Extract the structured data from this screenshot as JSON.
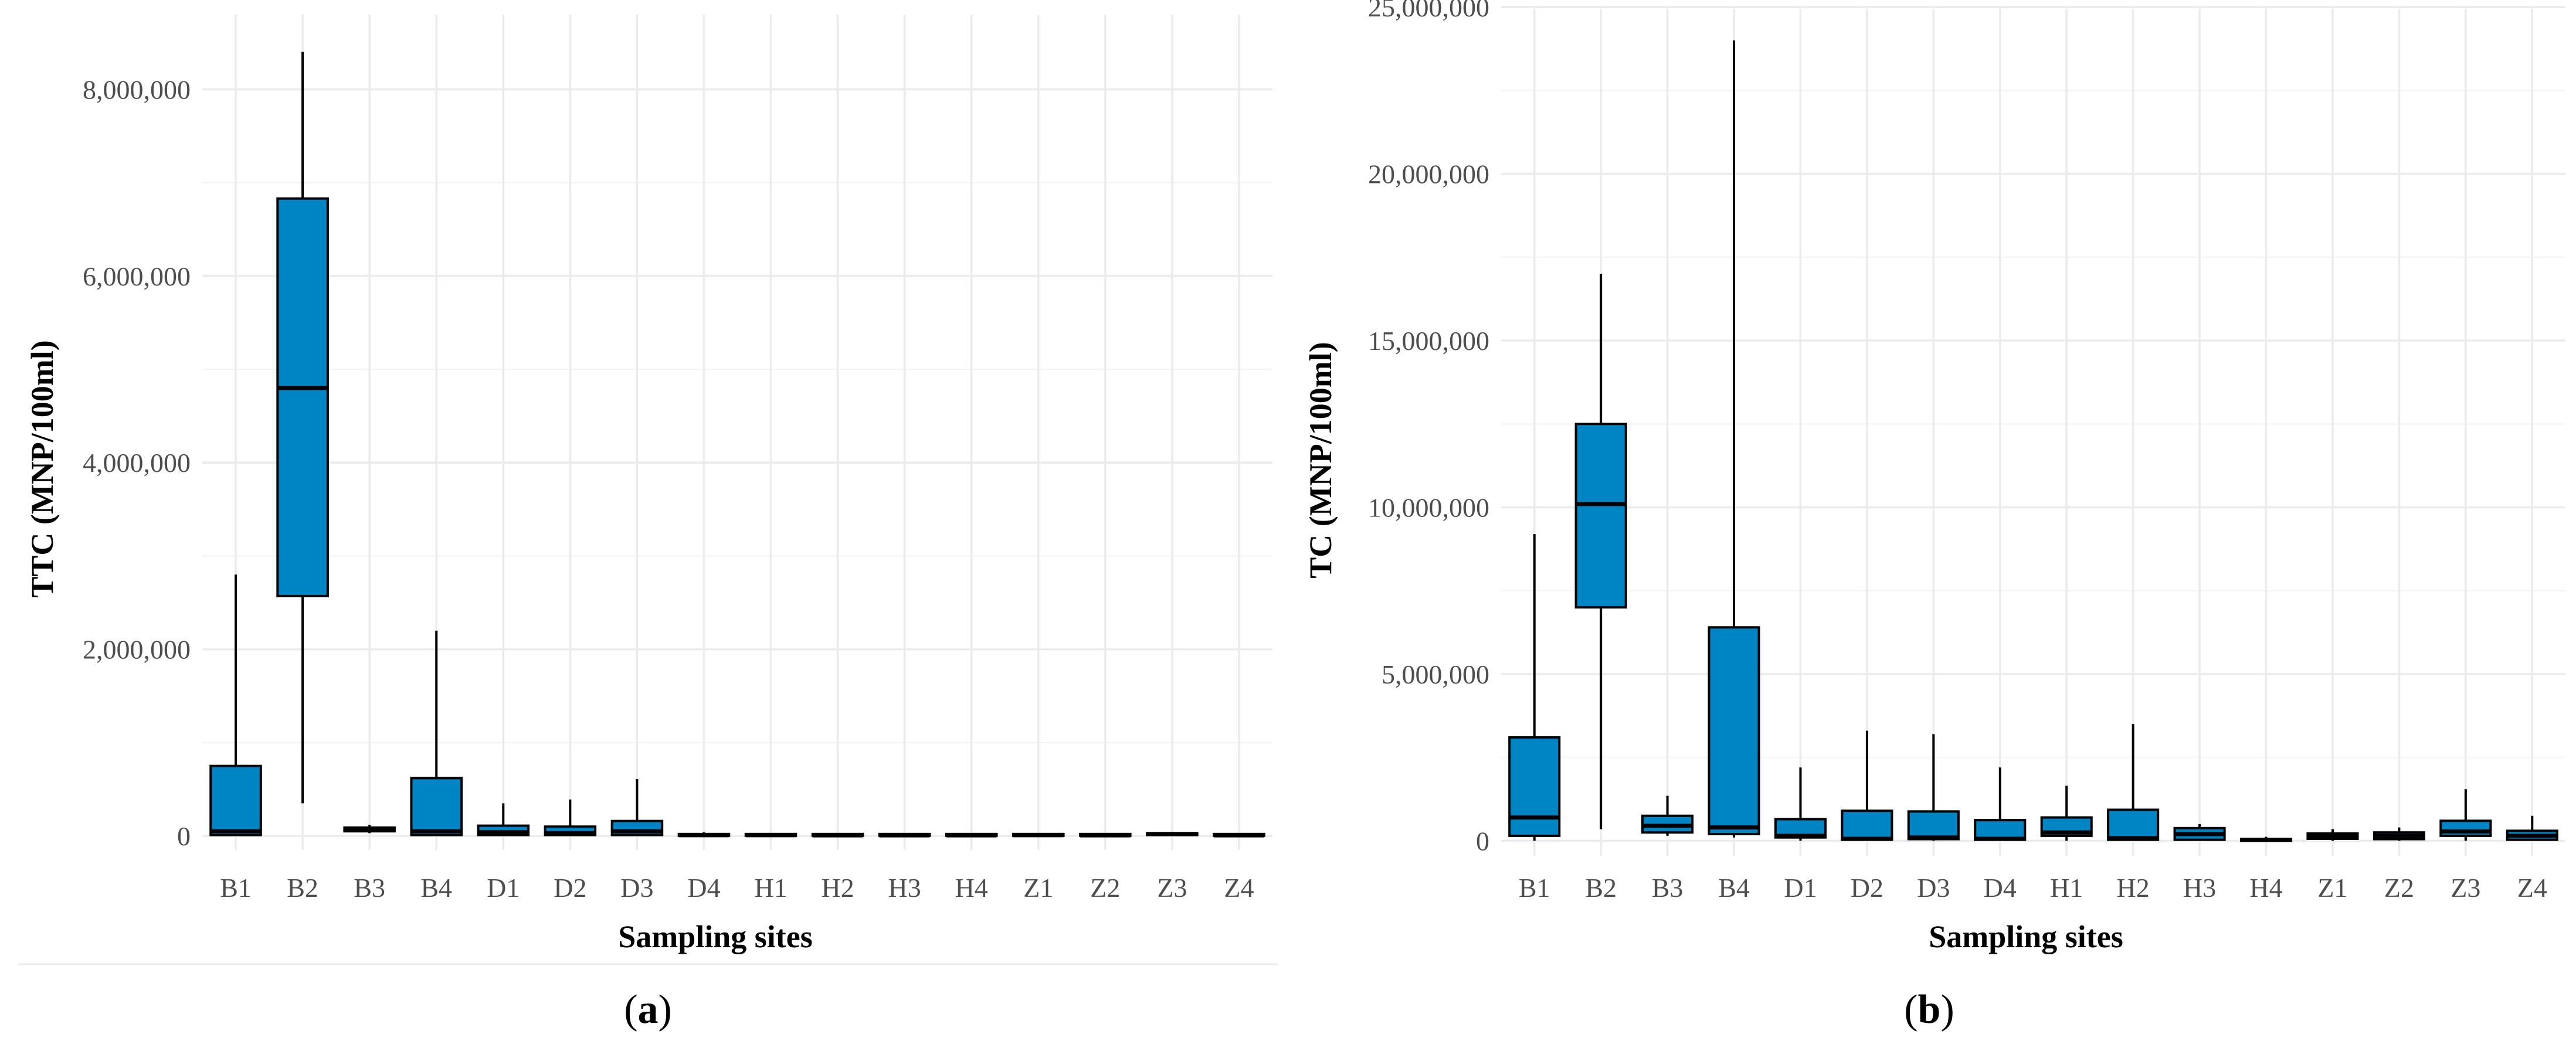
{
  "colors": {
    "box_fill": "#0085C4",
    "grid": "#EBEBEB",
    "tick_text": "#4D4D4D"
  },
  "chart_data": [
    {
      "type": "boxplot",
      "panel_label": {
        "open": "(",
        "letter": "a",
        "close": ")"
      },
      "xlabel": "Sampling sites",
      "ylabel": "TTC (MNP/100ml)",
      "ylim": [
        -150000,
        8800000
      ],
      "yticks": [
        0,
        2000000,
        4000000,
        6000000,
        8000000
      ],
      "ytick_labels": [
        "0",
        "2,000,000",
        "4,000,000",
        "6,000,000",
        "8,000,000"
      ],
      "grid": true,
      "categories": [
        "B1",
        "B2",
        "B3",
        "B4",
        "D1",
        "D2",
        "D3",
        "D4",
        "H1",
        "H2",
        "H3",
        "H4",
        "Z1",
        "Z2",
        "Z3",
        "Z4"
      ],
      "boxes": [
        {
          "min": 0,
          "q1": 10000,
          "median": 50000,
          "q3": 750000,
          "max": 2800000
        },
        {
          "min": 350000,
          "q1": 2570000,
          "median": 4800000,
          "q3": 6830000,
          "max": 8400000
        },
        {
          "min": 30000,
          "q1": 50000,
          "median": 70000,
          "q3": 90000,
          "max": 120000
        },
        {
          "min": 0,
          "q1": 10000,
          "median": 50000,
          "q3": 620000,
          "max": 2200000
        },
        {
          "min": 0,
          "q1": 10000,
          "median": 40000,
          "q3": 110000,
          "max": 350000
        },
        {
          "min": 0,
          "q1": 10000,
          "median": 30000,
          "q3": 100000,
          "max": 390000
        },
        {
          "min": 0,
          "q1": 10000,
          "median": 50000,
          "q3": 160000,
          "max": 610000
        },
        {
          "min": 0,
          "q1": 2000,
          "median": 8000,
          "q3": 20000,
          "max": 40000
        },
        {
          "min": 0,
          "q1": 2000,
          "median": 8000,
          "q3": 18000,
          "max": 30000
        },
        {
          "min": 0,
          "q1": 2000,
          "median": 6000,
          "q3": 15000,
          "max": 25000
        },
        {
          "min": 0,
          "q1": 2000,
          "median": 6000,
          "q3": 15000,
          "max": 25000
        },
        {
          "min": 0,
          "q1": 2000,
          "median": 6000,
          "q3": 15000,
          "max": 25000
        },
        {
          "min": 0,
          "q1": 2000,
          "median": 8000,
          "q3": 18000,
          "max": 30000
        },
        {
          "min": 0,
          "q1": 2000,
          "median": 6000,
          "q3": 15000,
          "max": 25000
        },
        {
          "min": 0,
          "q1": 10000,
          "median": 20000,
          "q3": 30000,
          "max": 45000
        },
        {
          "min": 0,
          "q1": 2000,
          "median": 6000,
          "q3": 15000,
          "max": 25000
        }
      ]
    },
    {
      "type": "boxplot",
      "panel_label": {
        "open": "(",
        "letter": "b",
        "close": ")"
      },
      "xlabel": "Sampling sites",
      "ylabel": "TC (MNP/100ml)",
      "ylim": [
        -450000,
        24950000
      ],
      "yticks": [
        0,
        5000000,
        10000000,
        15000000,
        20000000,
        25000000
      ],
      "ytick_labels": [
        "0",
        "5,000,000",
        "10,000,000",
        "15,000,000",
        "20,000,000",
        "25,000,000"
      ],
      "grid": true,
      "categories": [
        "B1",
        "B2",
        "B3",
        "B4",
        "D1",
        "D2",
        "D3",
        "D4",
        "H1",
        "H2",
        "H3",
        "H4",
        "Z1",
        "Z2",
        "Z3",
        "Z4"
      ],
      "boxes": [
        {
          "min": 0,
          "q1": 150000,
          "median": 700000,
          "q3": 3100000,
          "max": 9200000
        },
        {
          "min": 350000,
          "q1": 7000000,
          "median": 10100000,
          "q3": 12500000,
          "max": 17000000
        },
        {
          "min": 150000,
          "q1": 250000,
          "median": 450000,
          "q3": 750000,
          "max": 1350000
        },
        {
          "min": 100000,
          "q1": 200000,
          "median": 400000,
          "q3": 6400000,
          "max": 24000000
        },
        {
          "min": 0,
          "q1": 100000,
          "median": 150000,
          "q3": 650000,
          "max": 2200000
        },
        {
          "min": 0,
          "q1": 30000,
          "median": 60000,
          "q3": 900000,
          "max": 3300000
        },
        {
          "min": 0,
          "q1": 50000,
          "median": 100000,
          "q3": 880000,
          "max": 3200000
        },
        {
          "min": 0,
          "q1": 30000,
          "median": 60000,
          "q3": 620000,
          "max": 2200000
        },
        {
          "min": 0,
          "q1": 150000,
          "median": 250000,
          "q3": 700000,
          "max": 1650000
        },
        {
          "min": 0,
          "q1": 30000,
          "median": 80000,
          "q3": 930000,
          "max": 3500000
        },
        {
          "min": 0,
          "q1": 30000,
          "median": 200000,
          "q3": 380000,
          "max": 500000
        },
        {
          "min": 0,
          "q1": 0,
          "median": 30000,
          "q3": 50000,
          "max": 120000
        },
        {
          "min": 0,
          "q1": 60000,
          "median": 150000,
          "q3": 220000,
          "max": 350000
        },
        {
          "min": 0,
          "q1": 50000,
          "median": 150000,
          "q3": 250000,
          "max": 400000
        },
        {
          "min": 0,
          "q1": 150000,
          "median": 280000,
          "q3": 600000,
          "max": 1550000
        },
        {
          "min": 0,
          "q1": 30000,
          "median": 150000,
          "q3": 300000,
          "max": 750000
        }
      ]
    }
  ]
}
